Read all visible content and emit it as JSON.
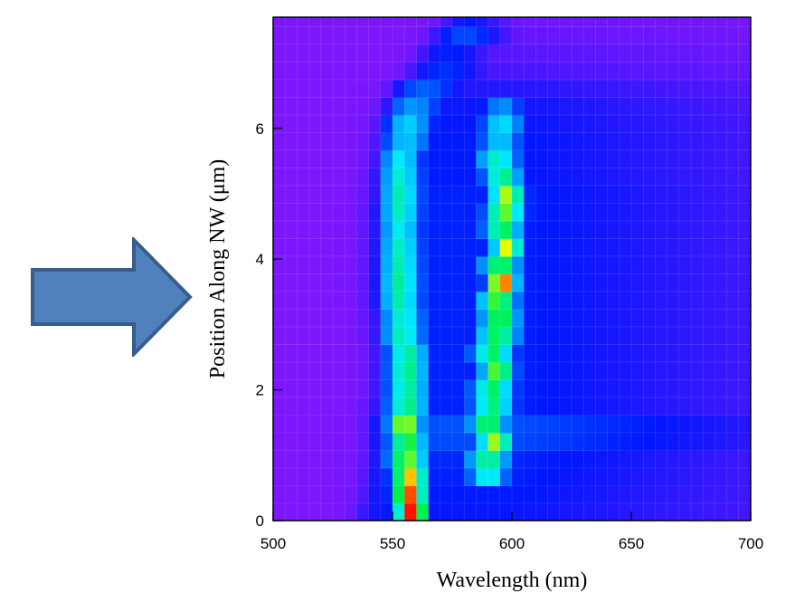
{
  "chart_data": {
    "type": "heatmap",
    "title": "",
    "xlabel": "Wavelength (nm)",
    "ylabel": "Position Along NW (μm)",
    "xlim": [
      500,
      700
    ],
    "ylim": [
      0,
      7.7
    ],
    "x_ticks": [
      "500",
      "550",
      "600",
      "650",
      "700"
    ],
    "y_ticks": [
      "0",
      "2",
      "4",
      "6"
    ],
    "colormap": [
      "#7b16ff",
      "#0017ff",
      "#008cff",
      "#00eaff",
      "#00f24a",
      "#ffff00",
      "#ff0a00"
    ],
    "grid": true,
    "x_bins": 40,
    "y_bin_height": 0.27,
    "rows": [
      {
        "y": 0.13,
        "peaks": [
          {
            "c": 558,
            "w": 7.0,
            "a": 1.0
          }
        ],
        "edge": 537,
        "tail": 0.16
      },
      {
        "y": 0.4,
        "peaks": [
          {
            "c": 557,
            "w": 7.5,
            "a": 0.96
          }
        ],
        "edge": 539,
        "tail": 0.17
      },
      {
        "y": 0.67,
        "peaks": [
          {
            "c": 557,
            "w": 8.0,
            "a": 0.88
          },
          {
            "c": 590,
            "w": 9,
            "a": 0.55
          }
        ],
        "edge": 540,
        "tail": 0.18
      },
      {
        "y": 0.94,
        "peaks": [
          {
            "c": 556,
            "w": 9.0,
            "a": 0.75
          },
          {
            "c": 590,
            "w": 10,
            "a": 0.62
          }
        ],
        "edge": 541,
        "tail": 0.19
      },
      {
        "y": 1.21,
        "peaks": [
          {
            "c": 556,
            "w": 9.0,
            "a": 0.7
          },
          {
            "c": 593,
            "w": 8,
            "a": 0.77
          }
        ],
        "edge": 542,
        "tail": 0.24
      },
      {
        "y": 1.48,
        "peaks": [
          {
            "c": 555,
            "w": 8.0,
            "a": 0.82
          },
          {
            "c": 590,
            "w": 9,
            "a": 0.68
          }
        ],
        "edge": 542,
        "tail": 0.25
      },
      {
        "y": 1.75,
        "peaks": [
          {
            "c": 556,
            "w": 10.0,
            "a": 0.62
          },
          {
            "c": 592,
            "w": 10,
            "a": 0.62
          }
        ],
        "edge": 542,
        "tail": 0.18
      },
      {
        "y": 2.02,
        "peaks": [
          {
            "c": 556,
            "w": 10.0,
            "a": 0.6
          },
          {
            "c": 592,
            "w": 10,
            "a": 0.64
          }
        ],
        "edge": 543,
        "tail": 0.18
      },
      {
        "y": 2.29,
        "peaks": [
          {
            "c": 556,
            "w": 10.0,
            "a": 0.62
          },
          {
            "c": 594,
            "w": 8,
            "a": 0.74
          }
        ],
        "edge": 543,
        "tail": 0.18
      },
      {
        "y": 2.56,
        "peaks": [
          {
            "c": 556,
            "w": 10.0,
            "a": 0.6
          },
          {
            "c": 592,
            "w": 10,
            "a": 0.64
          }
        ],
        "edge": 543,
        "tail": 0.18
      },
      {
        "y": 2.83,
        "peaks": [
          {
            "c": 554,
            "w": 10.0,
            "a": 0.58
          },
          {
            "c": 594,
            "w": 10,
            "a": 0.66
          }
        ],
        "edge": 542,
        "tail": 0.18
      },
      {
        "y": 3.1,
        "peaks": [
          {
            "c": 554,
            "w": 10.0,
            "a": 0.56
          },
          {
            "c": 595,
            "w": 9,
            "a": 0.7
          }
        ],
        "edge": 542,
        "tail": 0.18
      },
      {
        "y": 3.37,
        "peaks": [
          {
            "c": 553,
            "w": 10.0,
            "a": 0.58
          },
          {
            "c": 594,
            "w": 9,
            "a": 0.72
          }
        ],
        "edge": 541,
        "tail": 0.18
      },
      {
        "y": 3.64,
        "peaks": [
          {
            "c": 553,
            "w": 10.0,
            "a": 0.6
          },
          {
            "c": 596,
            "w": 7,
            "a": 0.96
          }
        ],
        "edge": 541,
        "tail": 0.18
      },
      {
        "y": 3.91,
        "peaks": [
          {
            "c": 553,
            "w": 10.0,
            "a": 0.58
          },
          {
            "c": 595,
            "w": 9,
            "a": 0.68
          }
        ],
        "edge": 541,
        "tail": 0.18
      },
      {
        "y": 4.18,
        "peaks": [
          {
            "c": 553,
            "w": 10.0,
            "a": 0.56
          },
          {
            "c": 598,
            "w": 7,
            "a": 0.82
          }
        ],
        "edge": 541,
        "tail": 0.18
      },
      {
        "y": 4.45,
        "peaks": [
          {
            "c": 553,
            "w": 10.0,
            "a": 0.52
          },
          {
            "c": 596,
            "w": 9,
            "a": 0.66
          }
        ],
        "edge": 541,
        "tail": 0.18
      },
      {
        "y": 4.72,
        "peaks": [
          {
            "c": 553,
            "w": 10.0,
            "a": 0.56
          },
          {
            "c": 597,
            "w": 9,
            "a": 0.73
          }
        ],
        "edge": 541,
        "tail": 0.18
      },
      {
        "y": 4.99,
        "peaks": [
          {
            "c": 553,
            "w": 10.0,
            "a": 0.58
          },
          {
            "c": 598,
            "w": 8,
            "a": 0.78
          }
        ],
        "edge": 542,
        "tail": 0.18
      },
      {
        "y": 5.26,
        "peaks": [
          {
            "c": 553,
            "w": 10.0,
            "a": 0.55
          },
          {
            "c": 596,
            "w": 9,
            "a": 0.62
          }
        ],
        "edge": 542,
        "tail": 0.17
      },
      {
        "y": 5.53,
        "peaks": [
          {
            "c": 553,
            "w": 10.0,
            "a": 0.52
          },
          {
            "c": 594,
            "w": 10,
            "a": 0.56
          }
        ],
        "edge": 543,
        "tail": 0.17
      },
      {
        "y": 5.8,
        "peaks": [
          {
            "c": 555,
            "w": 12.0,
            "a": 0.44
          },
          {
            "c": 595,
            "w": 10,
            "a": 0.44
          }
        ],
        "edge": 544,
        "tail": 0.17
      },
      {
        "y": 6.07,
        "peaks": [
          {
            "c": 556,
            "w": 12.0,
            "a": 0.46
          },
          {
            "c": 596,
            "w": 10,
            "a": 0.48
          }
        ],
        "edge": 545,
        "tail": 0.16
      },
      {
        "y": 6.34,
        "peaks": [
          {
            "c": 558,
            "w": 14.0,
            "a": 0.36
          },
          {
            "c": 596,
            "w": 10,
            "a": 0.34
          }
        ],
        "edge": 547,
        "tail": 0.15
      },
      {
        "y": 6.61,
        "peaks": [
          {
            "c": 563,
            "w": 18.0,
            "a": 0.27
          }
        ],
        "edge": 550,
        "tail": 0.12
      },
      {
        "y": 6.88,
        "peaks": [
          {
            "c": 572,
            "w": 18.0,
            "a": 0.2
          }
        ],
        "edge": 556,
        "tail": 0.07
      },
      {
        "y": 7.15,
        "peaks": [
          {
            "c": 574,
            "w": 16.0,
            "a": 0.18
          }
        ],
        "edge": 560,
        "tail": 0.05
      },
      {
        "y": 7.42,
        "peaks": [
          {
            "c": 580,
            "w": 16.0,
            "a": 0.24
          }
        ],
        "edge": 566,
        "tail": 0.03
      },
      {
        "y": 7.69,
        "peaks": [
          {
            "c": 582,
            "w": 14.0,
            "a": 0.16
          }
        ],
        "edge": 570,
        "tail": 0.02
      }
    ]
  },
  "pointer_arrow": {
    "fill": "#4f81bd",
    "stroke": "#385d8a",
    "direction": "right"
  }
}
